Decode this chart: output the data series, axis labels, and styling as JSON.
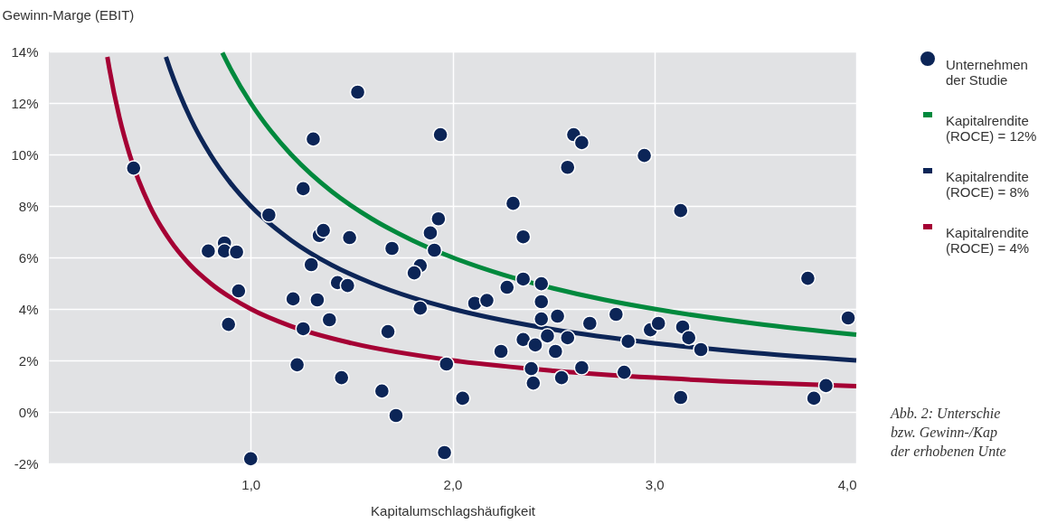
{
  "chart_data": {
    "type": "scatter",
    "xlabel": "Kapitalumschlagshäufigkeit",
    "ylabel": "Gewinn-Marge (EBIT)",
    "xlim": [
      0,
      4
    ],
    "xticks": [
      {
        "value": 1,
        "label": "1,0"
      },
      {
        "value": 2,
        "label": "2,0"
      },
      {
        "value": 3,
        "label": "3,0"
      },
      {
        "value": 4,
        "label": "4,0"
      }
    ],
    "ylim": [
      -2,
      14
    ],
    "yticks": [
      {
        "value": -2,
        "label": "-2%"
      },
      {
        "value": 0,
        "label": "0%"
      },
      {
        "value": 2,
        "label": "2%"
      },
      {
        "value": 4,
        "label": "4%"
      },
      {
        "value": 6,
        "label": "6%"
      },
      {
        "value": 8,
        "label": "8%"
      },
      {
        "value": 10,
        "label": "10%"
      },
      {
        "value": 12,
        "label": "12%"
      },
      {
        "value": 14,
        "label": "14%"
      }
    ],
    "grid": true,
    "legend": "top right",
    "annotations": [
      "Abb. 2: Unterschie",
      "bzw. Gewinn-/Kap",
      "der erhobenen Unte"
    ],
    "series": [
      {
        "name": "Unternehmen der Studie",
        "color": "#0c2557",
        "x": [
          0.42,
          0.79,
          0.87,
          0.87,
          0.93,
          0.94,
          0.89,
          1.0,
          1.09,
          1.26,
          1.31,
          1.53,
          1.34,
          1.36,
          1.49,
          1.7,
          1.3,
          1.43,
          1.48,
          1.84,
          1.81,
          1.84,
          1.21,
          1.33,
          1.39,
          1.26,
          1.68,
          1.97,
          1.23,
          1.45,
          1.65,
          1.72,
          1.96,
          1.94,
          1.93,
          1.89,
          1.91,
          2.6,
          2.64,
          2.95,
          2.57,
          2.3,
          3.13,
          2.35,
          2.35,
          2.44,
          2.27,
          2.11,
          2.17,
          2.44,
          2.44,
          2.52,
          2.81,
          2.68,
          2.98,
          3.02,
          3.14,
          3.17,
          3.23,
          2.87,
          2.47,
          2.57,
          2.35,
          2.41,
          2.51,
          2.24,
          2.39,
          2.64,
          2.85,
          2.54,
          2.4,
          2.05,
          3.13,
          3.76,
          3.96,
          3.85,
          3.79
        ],
        "values": [
          9.47,
          6.25,
          6.56,
          6.25,
          6.21,
          4.7,
          3.4,
          -1.82,
          7.65,
          8.67,
          10.6,
          12.42,
          6.85,
          7.05,
          6.77,
          6.35,
          5.72,
          5.02,
          4.91,
          5.68,
          5.4,
          4.03,
          4.39,
          4.35,
          3.58,
          3.23,
          3.12,
          1.86,
          1.83,
          1.33,
          0.81,
          -0.14,
          -1.58,
          10.77,
          7.5,
          6.95,
          6.28,
          10.77,
          10.46,
          9.96,
          9.5,
          8.1,
          7.82,
          6.8,
          5.16,
          4.98,
          4.84,
          4.22,
          4.33,
          4.28,
          3.61,
          3.72,
          3.79,
          3.44,
          3.19,
          3.44,
          3.3,
          2.88,
          2.42,
          2.74,
          2.95,
          2.88,
          2.81,
          2.6,
          2.35,
          2.35,
          1.68,
          1.72,
          1.54,
          1.33,
          1.12,
          0.53,
          0.56,
          5.19,
          3.65,
          1.02,
          0.53
        ]
      },
      {
        "name": "Kapitalrendite (ROCE) = 12%",
        "type": "line",
        "color": "#00893d",
        "x": [
          0.86,
          0.9,
          1,
          1.1,
          1.2,
          1.3,
          1.4,
          1.6,
          1.8,
          2,
          2.25,
          2.5,
          2.75,
          3,
          3.5,
          4
        ],
        "values": [
          13.95,
          13.33,
          12,
          10.91,
          10,
          9.23,
          8.57,
          7.5,
          6.67,
          6,
          5.33,
          4.8,
          4.36,
          4,
          3.43,
          3
        ]
      },
      {
        "name": "Kapitalrendite (ROCE) = 8%",
        "type": "line",
        "color": "#0c2557",
        "x": [
          0.58,
          0.6,
          0.7,
          0.8,
          0.9,
          1,
          1.2,
          1.4,
          1.6,
          1.8,
          2,
          2.5,
          3,
          3.5,
          4
        ],
        "values": [
          13.79,
          13.33,
          11.43,
          10,
          8.89,
          8,
          6.67,
          5.71,
          5,
          4.44,
          4,
          3.2,
          2.67,
          2.29,
          2
        ]
      },
      {
        "name": "Kapitalrendite (ROCE) = 4%",
        "type": "line",
        "color": "#a50034",
        "x": [
          0.29,
          0.3,
          0.35,
          0.4,
          0.5,
          0.6,
          0.7,
          0.8,
          1,
          1.2,
          1.5,
          2,
          2.5,
          3,
          3.5,
          4
        ],
        "values": [
          13.79,
          13.33,
          11.43,
          10,
          8,
          6.67,
          5.71,
          5,
          4,
          3.33,
          2.67,
          2,
          1.6,
          1.33,
          1.14,
          1
        ]
      }
    ]
  }
}
